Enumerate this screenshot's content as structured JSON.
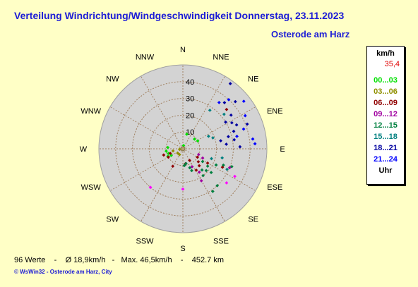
{
  "title": "Verteilung Windrichtung/Windgeschwindigkeit  Donnerstag, 23.11.2023",
  "location": "Osterode am Harz",
  "legend": {
    "unit": "km/h",
    "max": "35,4",
    "classes": [
      {
        "label": "00...03",
        "color": "#00e000"
      },
      {
        "label": "03...06",
        "color": "#909000"
      },
      {
        "label": "06...09",
        "color": "#900000"
      },
      {
        "label": "09...12",
        "color": "#a000a0"
      },
      {
        "label": "12...15",
        "color": "#008040"
      },
      {
        "label": "15...18",
        "color": "#008080"
      },
      {
        "label": "18...21",
        "color": "#0000a0"
      },
      {
        "label": "21...24",
        "color": "#0000ff"
      }
    ],
    "footer": "Uhr"
  },
  "footer": {
    "count": "96 Werte",
    "sep1": "-",
    "avg": "Ø 18,9km/h",
    "sep2": "-",
    "max": "Max. 46,5km/h",
    "sep3": "-",
    "distance": "452.7 km"
  },
  "credit": "© WsWin32  -  Osterode am Harz, City",
  "colors": {
    "disk": "#d3d3d3",
    "grid": "#a08060",
    "text_blue": "#1c1cd6"
  },
  "chart_data": {
    "type": "polar-scatter",
    "directions": [
      "N",
      "NNE",
      "NE",
      "ENE",
      "E",
      "ESE",
      "SE",
      "SSE",
      "S",
      "SSW",
      "SW",
      "WSW",
      "W",
      "WNW",
      "NW",
      "NNW"
    ],
    "radial_ticks": [
      10,
      20,
      30,
      40
    ],
    "rmax": 50,
    "points": [
      {
        "dir": 12,
        "speed": 2,
        "color": "#00e000"
      },
      {
        "dir": 15,
        "speed": 9,
        "color": "#00e000"
      },
      {
        "dir": 50,
        "speed": 9,
        "color": "#00e000"
      },
      {
        "dir": 62,
        "speed": 10,
        "color": "#00e000"
      },
      {
        "dir": 240,
        "speed": 8,
        "color": "#00e000"
      },
      {
        "dir": 252,
        "speed": 9,
        "color": "#00e000"
      },
      {
        "dir": 262,
        "speed": 10,
        "color": "#00e000"
      },
      {
        "dir": 243,
        "speed": 10,
        "color": "#00e000"
      },
      {
        "dir": 275,
        "speed": 9,
        "color": "#00e000"
      },
      {
        "dir": 262,
        "speed": 2,
        "color": "#909000"
      },
      {
        "dir": 210,
        "speed": 4,
        "color": "#909000"
      },
      {
        "dir": 230,
        "speed": 4,
        "color": "#909000"
      },
      {
        "dir": 258,
        "speed": 6,
        "color": "#909000"
      },
      {
        "dir": 150,
        "speed": 8,
        "color": "#900000"
      },
      {
        "dir": 170,
        "speed": 9,
        "color": "#900000"
      },
      {
        "dir": 210,
        "speed": 12,
        "color": "#900000"
      },
      {
        "dir": 240,
        "speed": 10,
        "color": "#900000"
      },
      {
        "dir": 250,
        "speed": 8,
        "color": "#900000"
      },
      {
        "dir": 252,
        "speed": 12,
        "color": "#900000"
      },
      {
        "dir": 120,
        "speed": 10,
        "color": "#900000"
      },
      {
        "dir": 130,
        "speed": 12,
        "color": "#900000"
      },
      {
        "dir": 136,
        "speed": 14,
        "color": "#900000"
      },
      {
        "dir": 148,
        "speed": 15,
        "color": "#900000"
      },
      {
        "dir": 120,
        "speed": 17,
        "color": "#900000"
      },
      {
        "dir": 115,
        "speed": 26,
        "color": "#900000"
      },
      {
        "dir": 48,
        "speed": 35,
        "color": "#900000"
      },
      {
        "dir": 180,
        "speed": 24,
        "color": "#ff00ff"
      },
      {
        "dir": 220,
        "speed": 30,
        "color": "#ff00ff"
      },
      {
        "dir": 118,
        "speed": 35,
        "color": "#ff00ff"
      },
      {
        "dir": 128,
        "speed": 33,
        "color": "#ff00ff"
      },
      {
        "dir": 145,
        "speed": 17,
        "color": "#a000a0"
      },
      {
        "dir": 150,
        "speed": 22,
        "color": "#a000a0"
      },
      {
        "dir": 153,
        "speed": 12,
        "color": "#a000a0"
      },
      {
        "dir": 110,
        "speed": 10,
        "color": "#a000a0"
      },
      {
        "dir": 115,
        "speed": 13,
        "color": "#a000a0"
      },
      {
        "dir": 112,
        "speed": 30,
        "color": "#a000a0"
      },
      {
        "dir": 110,
        "speed": 31,
        "color": "#008040"
      },
      {
        "dir": 138,
        "speed": 17,
        "color": "#008040"
      },
      {
        "dir": 143,
        "speed": 20,
        "color": "#008040"
      },
      {
        "dir": 168,
        "speed": 9,
        "color": "#008040"
      },
      {
        "dir": 175,
        "speed": 10,
        "color": "#008040"
      },
      {
        "dir": 160,
        "speed": 12,
        "color": "#008040"
      },
      {
        "dir": 158,
        "speed": 14,
        "color": "#008040"
      },
      {
        "dir": 123,
        "speed": 14,
        "color": "#008040"
      },
      {
        "dir": 125,
        "speed": 18,
        "color": "#008040"
      },
      {
        "dir": 133,
        "speed": 19,
        "color": "#008040"
      },
      {
        "dir": 130,
        "speed": 22,
        "color": "#008040"
      },
      {
        "dir": 116,
        "speed": 22,
        "color": "#008040"
      },
      {
        "dir": 112,
        "speed": 26,
        "color": "#008040"
      },
      {
        "dir": 137,
        "speed": 30,
        "color": "#008040"
      },
      {
        "dir": 145,
        "speed": 31,
        "color": "#008040"
      },
      {
        "dir": 35,
        "speed": 28,
        "color": "#008080"
      },
      {
        "dir": 64,
        "speed": 17,
        "color": "#008080"
      },
      {
        "dir": 70,
        "speed": 19,
        "color": "#008080"
      },
      {
        "dir": 103,
        "speed": 24,
        "color": "#008080"
      },
      {
        "dir": 109,
        "speed": 18,
        "color": "#008080"
      },
      {
        "dir": 115,
        "speed": 29,
        "color": "#008080"
      },
      {
        "dir": 50,
        "speed": 32,
        "color": "#008080"
      },
      {
        "dir": 62,
        "speed": 33,
        "color": "#0000a0"
      },
      {
        "dir": 66,
        "speed": 35,
        "color": "#0000a0"
      },
      {
        "dir": 71,
        "speed": 32,
        "color": "#0000a0"
      },
      {
        "dir": 75,
        "speed": 28,
        "color": "#0000a0"
      },
      {
        "dir": 80,
        "speed": 31,
        "color": "#0000a0"
      },
      {
        "dir": 88,
        "speed": 34,
        "color": "#0000a0"
      },
      {
        "dir": 78,
        "speed": 23,
        "color": "#0000a0"
      },
      {
        "dir": 84,
        "speed": 26,
        "color": "#0000a0"
      },
      {
        "dir": 42,
        "speed": 37,
        "color": "#0000a0"
      },
      {
        "dir": 55,
        "speed": 35,
        "color": "#0000a0"
      },
      {
        "dir": 58,
        "speed": 30,
        "color": "#0000a0"
      },
      {
        "dir": 36,
        "speed": 48,
        "color": "#0000a0"
      },
      {
        "dir": 48,
        "speed": 42,
        "color": "#0000a0"
      },
      {
        "dir": 69,
        "speed": 41,
        "color": "#0000a0"
      },
      {
        "dir": 38,
        "speed": 35,
        "color": "#0000ff"
      },
      {
        "dir": 43,
        "speed": 40,
        "color": "#0000ff"
      },
      {
        "dir": 52,
        "speed": 46,
        "color": "#0000ff"
      },
      {
        "dir": 62,
        "speed": 42,
        "color": "#0000ff"
      },
      {
        "dir": 72,
        "speed": 38,
        "color": "#0000ff"
      },
      {
        "dir": 86,
        "speed": 43,
        "color": "#0000ff"
      },
      {
        "dir": 82,
        "speed": 42,
        "color": "#0000ff"
      },
      {
        "dir": 77,
        "speed": 33,
        "color": "#0000ff"
      }
    ]
  }
}
